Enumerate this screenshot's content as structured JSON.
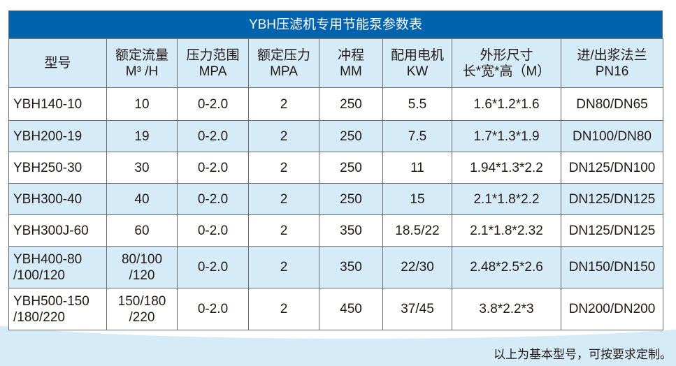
{
  "title": "YBH压滤机专用节能泵参数表",
  "headers": [
    "型号",
    "额定流量\nM³ /H",
    "压力范围\nMPA",
    "额定压力\nMPA",
    "冲程\nMM",
    "配用电机\nKW",
    "外形尺寸\n长*宽*高（M）",
    "进/出浆法兰\nPN16"
  ],
  "rows": [
    [
      "YBH140-10",
      "10",
      "0-2.0",
      "2",
      "250",
      "5.5",
      "1.6*1.2*1.6",
      "DN80/DN65"
    ],
    [
      "YBH200-19",
      "19",
      "0-2.0",
      "2",
      "250",
      "7.5",
      "1.7*1.3*1.9",
      "DN100/DN80"
    ],
    [
      "YBH250-30",
      "30",
      "0-2.0",
      "2",
      "250",
      "11",
      "1.94*1.3*2.2",
      "DN125/DN100"
    ],
    [
      "YBH300-40",
      "40",
      "0-2.0",
      "2",
      "250",
      "15",
      "2.1*1.8*2.2",
      "DN125/DN125"
    ],
    [
      "YBH300J-60",
      "60",
      "0-2.0",
      "2",
      "350",
      "18.5/22",
      "2.1*1.8*2.32",
      "DN125/DN125"
    ],
    [
      "YBH400-80\n/100/120",
      "80/100\n/120",
      "0-2.0",
      "2",
      "350",
      "22/30",
      "2.48*2.5*2.6",
      "DN150/DN150"
    ],
    [
      "YBH500-150\n/180/220",
      "150/180\n/220",
      "0-2.0",
      "2",
      "450",
      "37/45",
      "3.8*2.2*3",
      "DN200/DN200"
    ]
  ],
  "note": "以上为基本型号，可按要求定制。",
  "colors": {
    "title_bg": "#0063ae",
    "alt_row": "#d6ebf8"
  }
}
